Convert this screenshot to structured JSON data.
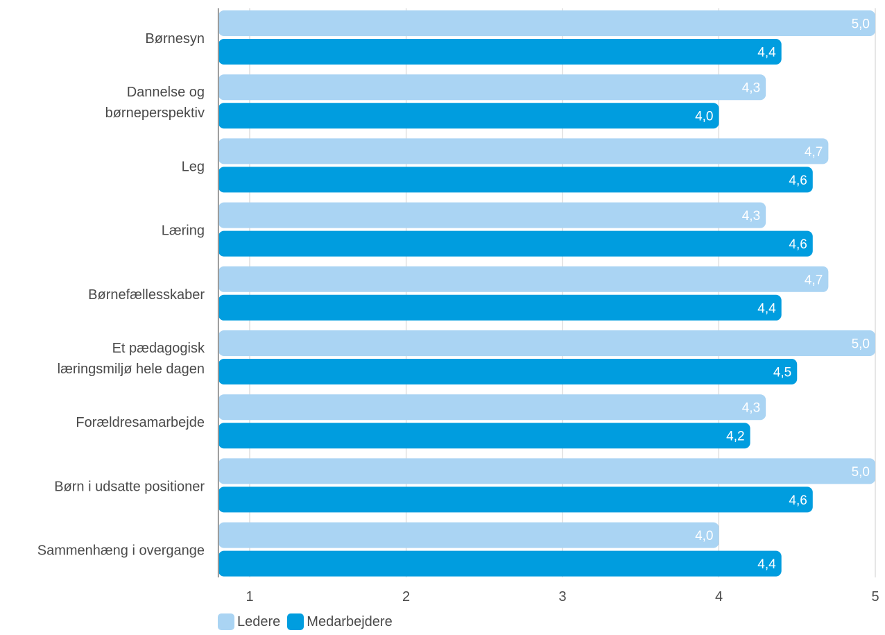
{
  "chart_data": {
    "type": "bar",
    "orientation": "horizontal",
    "categories": [
      [
        "Børnesyn"
      ],
      [
        "Dannelse og",
        "børneperspektiv"
      ],
      [
        "Leg"
      ],
      [
        "Læring"
      ],
      [
        "Børnefællesskaber"
      ],
      [
        "Et pædagogisk",
        "læringsmiljø hele dagen"
      ],
      [
        "Forældresamarbejde"
      ],
      [
        "Børn i udsatte positioner"
      ],
      [
        "Sammenhæng i overgange"
      ]
    ],
    "series": [
      {
        "name": "Ledere",
        "color": "#aad4f3",
        "values": [
          5.0,
          4.3,
          4.7,
          4.3,
          4.7,
          5.0,
          4.3,
          5.0,
          4.0
        ],
        "labels": [
          "5,0",
          "4,3",
          "4,7",
          "4,3",
          "4,7",
          "5,0",
          "4,3",
          "5,0",
          "4,0"
        ]
      },
      {
        "name": "Medarbejdere",
        "color": "#009ddf",
        "values": [
          4.4,
          4.0,
          4.6,
          4.6,
          4.4,
          4.5,
          4.2,
          4.6,
          4.4
        ],
        "labels": [
          "4,4",
          "4,0",
          "4,6",
          "4,6",
          "4,4",
          "4,5",
          "4,2",
          "4,6",
          "4,4"
        ]
      }
    ],
    "x_ticks": [
      "1",
      "2",
      "3",
      "4",
      "5"
    ],
    "xlim": [
      0.8,
      5
    ],
    "grid": true,
    "legend_position": "bottom-left",
    "title": "",
    "xlabel": "",
    "ylabel": ""
  }
}
